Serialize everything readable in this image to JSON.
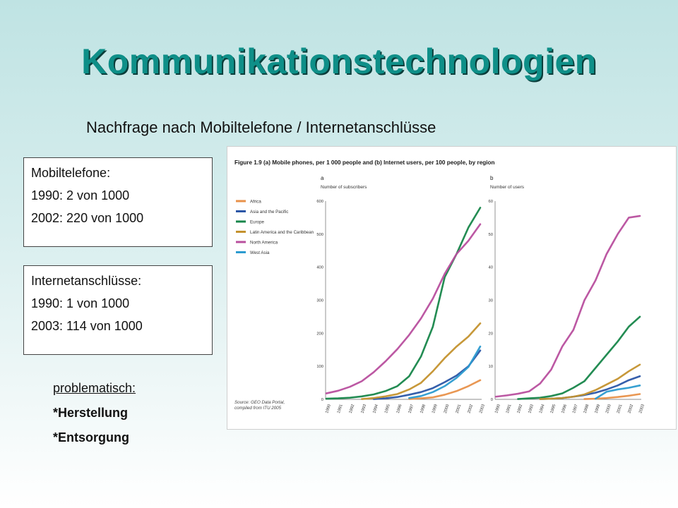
{
  "slide": {
    "title": "Kommunikationstechnologien",
    "subtitle": "Nachfrage nach Mobiltelefone / Internetanschlüsse",
    "box1": [
      "Mobiltelefone:",
      "1990: 2 von 1000",
      "2002: 220 von 1000"
    ],
    "box2": [
      "Internetanschlüsse:",
      "1990: 1 von 1000",
      "2003: 114 von 1000"
    ],
    "notes": {
      "heading": "problematisch:",
      "items": [
        "*Herstellung",
        "*Entsorgung"
      ]
    }
  },
  "chart_data": [
    {
      "type": "line",
      "title": "Figure 1.9 (a) Mobile phones, per 1 000 people and (b) Internet users, per 100 people, by region",
      "panel": "a",
      "ylabel": "Number of subscribers",
      "ylim": [
        0,
        600
      ],
      "yticks": [
        0,
        100,
        200,
        300,
        400,
        500,
        600
      ],
      "x": [
        "1990",
        "1991",
        "1992",
        "1993",
        "1994",
        "1995",
        "1996",
        "1997",
        "1998",
        "1999",
        "2000",
        "2001",
        "2002",
        "2003"
      ],
      "legend": [
        "Africa",
        "Asia and the Pacific",
        "Europe",
        "Latin America and the Caribbean",
        "North America",
        "West Asia"
      ],
      "source": "Source: GEO Data Portal, compiled from ITU 2005",
      "series": [
        {
          "name": "Africa",
          "color": "#e8914a",
          "values": [
            null,
            null,
            null,
            null,
            null,
            null,
            null,
            1,
            3,
            6,
            14,
            25,
            40,
            58
          ]
        },
        {
          "name": "Asia and the Pacific",
          "color": "#2b56a6",
          "values": [
            null,
            null,
            null,
            null,
            1,
            3,
            7,
            14,
            22,
            34,
            52,
            72,
            100,
            148
          ]
        },
        {
          "name": "Europe",
          "color": "#17864a",
          "values": [
            2,
            3,
            5,
            9,
            15,
            25,
            40,
            70,
            130,
            220,
            370,
            440,
            520,
            580
          ]
        },
        {
          "name": "Latin America and the Caribbean",
          "color": "#c4922e",
          "values": [
            null,
            null,
            null,
            1,
            4,
            9,
            16,
            30,
            50,
            85,
            125,
            160,
            190,
            230
          ]
        },
        {
          "name": "North America",
          "color": "#b84f9e",
          "values": [
            18,
            26,
            38,
            55,
            82,
            115,
            152,
            195,
            245,
            305,
            380,
            440,
            480,
            530
          ]
        },
        {
          "name": "West Asia",
          "color": "#2c9bd0",
          "values": [
            null,
            null,
            null,
            null,
            null,
            null,
            null,
            4,
            10,
            22,
            40,
            65,
            98,
            160
          ]
        }
      ]
    },
    {
      "type": "line",
      "panel": "b",
      "ylabel": "Number of users",
      "ylim": [
        0,
        60
      ],
      "yticks": [
        0,
        10,
        20,
        30,
        40,
        50,
        60
      ],
      "x": [
        "1990",
        "1991",
        "1992",
        "1993",
        "1994",
        "1995",
        "1996",
        "1997",
        "1998",
        "1999",
        "2000",
        "2001",
        "2002",
        "2003"
      ],
      "series": [
        {
          "name": "Africa",
          "color": "#e8914a",
          "values": [
            null,
            null,
            null,
            null,
            null,
            null,
            null,
            null,
            0.1,
            0.2,
            0.4,
            0.7,
            1.1,
            1.6
          ]
        },
        {
          "name": "Asia and the Pacific",
          "color": "#2b56a6",
          "values": [
            null,
            null,
            null,
            null,
            0.1,
            0.2,
            0.4,
            0.8,
            1.3,
            2.0,
            3.0,
            4.2,
            5.8,
            7.0
          ]
        },
        {
          "name": "Europe",
          "color": "#17864a",
          "values": [
            null,
            null,
            0.1,
            0.3,
            0.5,
            1.0,
            1.8,
            3.5,
            5.5,
            9.5,
            13.5,
            17.5,
            22,
            25
          ]
        },
        {
          "name": "Latin America and the Caribbean",
          "color": "#c4922e",
          "values": [
            null,
            null,
            null,
            null,
            0.1,
            0.2,
            0.4,
            0.8,
            1.5,
            2.8,
            4.5,
            6.2,
            8.5,
            10.5
          ]
        },
        {
          "name": "North America",
          "color": "#b84f9e",
          "values": [
            0.8,
            1.2,
            1.7,
            2.4,
            4.8,
            9,
            16,
            21,
            30,
            36,
            44,
            50,
            55,
            55.5
          ]
        },
        {
          "name": "West Asia",
          "color": "#2c9bd0",
          "values": [
            null,
            null,
            null,
            null,
            null,
            null,
            null,
            null,
            null,
            0.2,
            2.3,
            3.0,
            3.5,
            4.2
          ]
        }
      ]
    }
  ]
}
